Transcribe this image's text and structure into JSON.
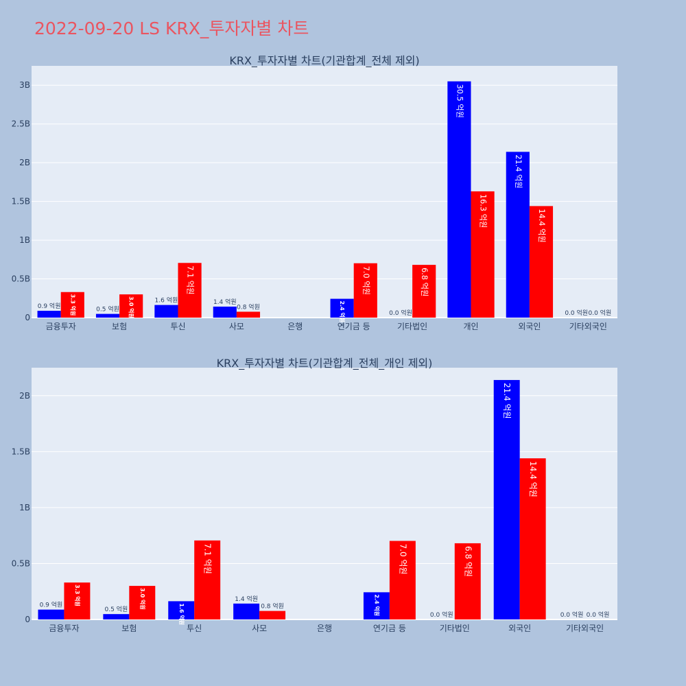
{
  "page": {
    "title": "2022-09-20 LS KRX_투자자별 차트"
  },
  "colors": {
    "buy": "#0000ff",
    "sell": "#ff0000",
    "plot_bg": "#e5ecf6",
    "page_bg": "#b0c4de",
    "grid": "#ffffff",
    "title": "#ea5560",
    "text": "#2a3f5f"
  },
  "chart_data": [
    {
      "type": "bar",
      "title": "KRX_투자자별 차트(기관합계_전체 제외)",
      "categories": [
        "금융투자",
        "보험",
        "투신",
        "사모",
        "은행",
        "연기금 등",
        "기타법인",
        "개인",
        "외국인",
        "기타외국인"
      ],
      "series": [
        {
          "values": [
            88000000,
            48000000,
            163000000,
            142000000,
            0,
            243000000,
            0,
            3050000000,
            2140000000,
            0
          ],
          "labels": [
            "0.9 억원",
            "0.5 억원",
            "1.6 억원",
            "1.4 억원",
            "",
            "2.4 억원",
            "0.0 억원",
            "30.5 억원",
            "21.4 억원",
            "0.0 억원"
          ]
        },
        {
          "values": [
            330000000,
            300000000,
            706000000,
            76000000,
            0,
            702000000,
            681000000,
            1630000000,
            1440000000,
            0
          ],
          "labels": [
            "3.3 억원",
            "3.0 억원",
            "7.1 억원",
            "0.8 억원",
            "",
            "7.0 억원",
            "6.8 억원",
            "16.3 억원",
            "14.4 억원",
            "0.0 억원"
          ]
        }
      ],
      "ylim": [
        0,
        3250000000
      ],
      "yticks": [
        0,
        500000000,
        1000000000,
        1500000000,
        2000000000,
        2500000000,
        3000000000
      ],
      "ytick_labels": [
        "0",
        "0.5B",
        "1B",
        "1.5B",
        "2B",
        "2.5B",
        "3B"
      ]
    },
    {
      "type": "bar",
      "title": "KRX_투자자별 차트(기관합계_전체_개인 제외)",
      "categories": [
        "금융투자",
        "보험",
        "투신",
        "사모",
        "은행",
        "연기금 등",
        "기타법인",
        "외국인",
        "기타외국인"
      ],
      "series": [
        {
          "values": [
            88000000,
            48000000,
            163000000,
            142000000,
            0,
            243000000,
            0,
            2140000000,
            0
          ],
          "labels": [
            "0.9 억원",
            "0.5 억원",
            "1.6 억원",
            "1.4 억원",
            "",
            "2.4 억원",
            "0.0 억원",
            "21.4 억원",
            "0.0 억원"
          ]
        },
        {
          "values": [
            330000000,
            300000000,
            706000000,
            76000000,
            0,
            702000000,
            681000000,
            1440000000,
            0
          ],
          "labels": [
            "3.3 억원",
            "3.0 억원",
            "7.1 억원",
            "0.8 억원",
            "",
            "7.0 억원",
            "6.8 억원",
            "14.4 억원",
            "0.0 억원"
          ]
        }
      ],
      "ylim": [
        0,
        2250000000
      ],
      "yticks": [
        0,
        500000000,
        1000000000,
        1500000000,
        2000000000
      ],
      "ytick_labels": [
        "0",
        "0.5B",
        "1B",
        "1.5B",
        "2B"
      ]
    }
  ]
}
